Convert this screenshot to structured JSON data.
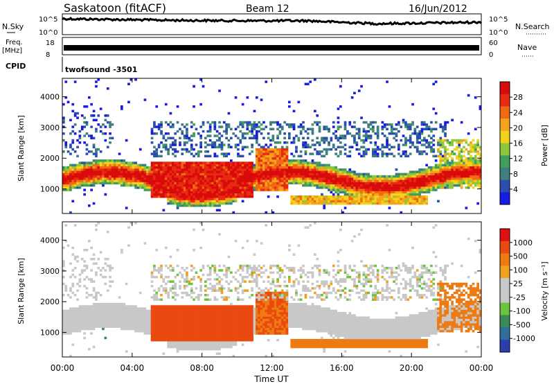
{
  "header": {
    "title": "Saskatoon (fitACF)",
    "beam": "Beam 12",
    "date": "16/Jun/2012"
  },
  "noise_panel": {
    "left_label": "N.Sky",
    "right_label": "N.Search",
    "left_ticks": [
      "10^5",
      "10^0"
    ],
    "right_ticks": [
      "10^5",
      "10^0"
    ],
    "trace_color": "#000000"
  },
  "freq_panel": {
    "left_label_line1": "Freq.",
    "left_label_line2": "[MHz]",
    "right_label": "Nave",
    "left_ticks": [
      "18",
      "8"
    ],
    "right_ticks": [
      "60",
      "0"
    ]
  },
  "cpid": {
    "label": "CPID",
    "value": "twofsound -3501"
  },
  "chart_data": [
    {
      "type": "heatmap",
      "name": "power",
      "ylabel": "Slant Range [km]",
      "yticks": [
        1000,
        2000,
        3000,
        4000
      ],
      "ylim": [
        200,
        4600
      ],
      "xlim": [
        0,
        24
      ],
      "colorbar_label": "Power [dB]",
      "colorbar_ticks": [
        "28",
        "24",
        "20",
        "16",
        "12",
        "8",
        "4"
      ],
      "colors": [
        "#1a1ae6",
        "#2a4fb0",
        "#3f7f7f",
        "#3fa05a",
        "#8ec83a",
        "#f2d21a",
        "#f5a31a",
        "#f06a14",
        "#e82a10",
        "#d80a0a"
      ]
    },
    {
      "type": "heatmap",
      "name": "velocity",
      "ylabel": "Slant Range [km]",
      "yticks": [
        1000,
        2000,
        3000,
        4000
      ],
      "ylim": [
        200,
        4600
      ],
      "xlim": [
        0,
        24
      ],
      "xticks": [
        "00:00",
        "04:00",
        "08:00",
        "12:00",
        "16:00",
        "20:00",
        "00:00"
      ],
      "xlabel": "Time UT",
      "colorbar_label": "Velocity [m s⁻¹]",
      "colorbar_ticks": [
        "1000",
        "500",
        "100",
        "25",
        "-25",
        "-100",
        "-500",
        "-1000"
      ],
      "colors": [
        "#2a3fae",
        "#2f6e9e",
        "#3a8a5a",
        "#6cc43e",
        "#c8c8c8",
        "#c8c8c8",
        "#f0a21e",
        "#ee7a12",
        "#ea4a10",
        "#e01010"
      ]
    }
  ]
}
